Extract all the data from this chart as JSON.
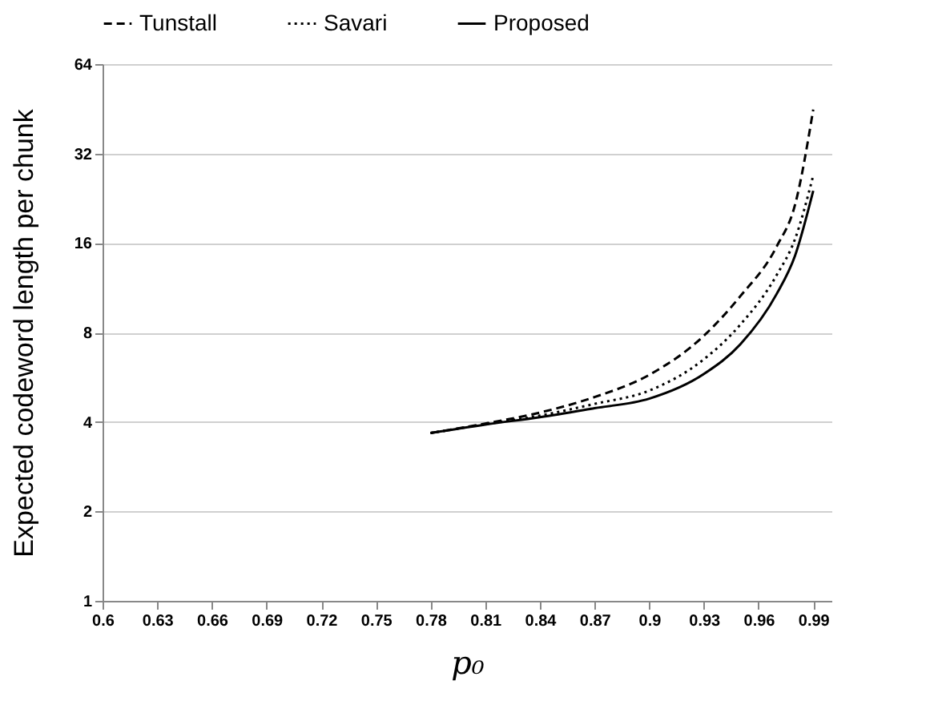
{
  "chart_data": {
    "type": "line",
    "xlabel": "p₀",
    "ylabel": "Expected codeword length per chunk",
    "xlim": [
      0.6,
      1.0
    ],
    "xticks": [
      0.6,
      0.63,
      0.66,
      0.69,
      0.72,
      0.75,
      0.78,
      0.81,
      0.84,
      0.87,
      0.9,
      0.93,
      0.96,
      0.99
    ],
    "ylim": [
      1,
      64
    ],
    "yticks": [
      1,
      2,
      4,
      8,
      16,
      32,
      64
    ],
    "log": "y",
    "grid": "y",
    "legend": "top",
    "marker": "none",
    "series": [
      {
        "name": "Tunstall",
        "color": "#000000",
        "line_style": "dashed",
        "x": [
          0.78,
          0.81,
          0.84,
          0.87,
          0.9,
          0.93,
          0.95,
          0.97,
          0.98,
          0.99
        ],
        "values": [
          3.67,
          3.95,
          4.3,
          4.85,
          5.76,
          7.8,
          10.6,
          15.6,
          21.5,
          45
        ]
      },
      {
        "name": "Savari",
        "color": "#000000",
        "line_style": "dotted",
        "x": [
          0.78,
          0.81,
          0.84,
          0.87,
          0.9,
          0.93,
          0.95,
          0.97,
          0.98,
          0.99
        ],
        "values": [
          3.67,
          3.93,
          4.2,
          4.6,
          5.1,
          6.5,
          8.5,
          12.5,
          16.5,
          27
        ]
      },
      {
        "name": "Proposed",
        "color": "#000000",
        "line_style": "solid",
        "x": [
          0.78,
          0.81,
          0.84,
          0.87,
          0.9,
          0.93,
          0.95,
          0.97,
          0.98,
          0.99
        ],
        "values": [
          3.67,
          3.92,
          4.15,
          4.45,
          4.79,
          5.8,
          7.3,
          10.8,
          14.5,
          24
        ]
      }
    ]
  }
}
